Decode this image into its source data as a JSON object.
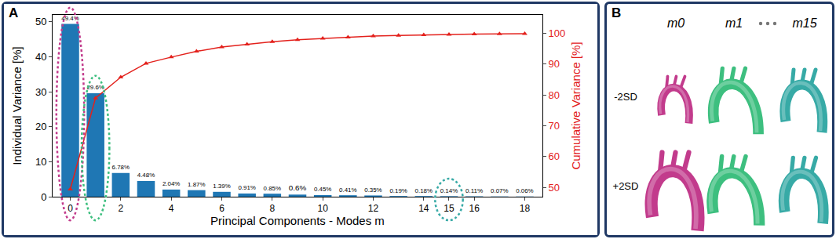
{
  "panel_a": {
    "label": "A"
  },
  "chart_data": {
    "type": "bar",
    "x": [
      0,
      1,
      2,
      3,
      4,
      5,
      6,
      7,
      8,
      9,
      10,
      11,
      12,
      13,
      14,
      15,
      16,
      17,
      18
    ],
    "xlabel": "Principal Components - Modes m",
    "ylabel": "Individual Variance [%]",
    "y2label": "Cumulative Variance [%]",
    "xlim": [
      -0.7,
      18.7
    ],
    "xticks": [
      0,
      2,
      4,
      6,
      8,
      10,
      12,
      14,
      15,
      16,
      18
    ],
    "ylim": [
      0,
      52
    ],
    "yticks": [
      0,
      10,
      20,
      30,
      40,
      50
    ],
    "y2lim": [
      47,
      106
    ],
    "y2ticks": [
      50,
      60,
      70,
      80,
      90,
      100
    ],
    "data_labels": true,
    "series": [
      {
        "type": "bar",
        "color": "#1f77b4",
        "values": [
          49.4,
          29.6,
          6.78,
          4.48,
          2.04,
          1.87,
          1.39,
          0.91,
          0.85,
          0.6,
          0.45,
          0.41,
          0.35,
          0.19,
          0.18,
          0.14,
          0.11,
          0.07,
          0.06
        ],
        "value_labels": [
          "49.4%",
          "29.6%",
          "6.78%",
          "4.48%",
          "2.04%",
          "1.87%",
          "1.39%",
          "0.91%",
          "0.85%",
          "0.6%",
          "0.45%",
          "0.41%",
          "0.35%",
          "0.19%",
          "0.18%",
          "0.14%",
          "0.11%",
          "0.07%",
          "0.06%"
        ]
      },
      {
        "type": "line",
        "axis": "y2",
        "color": "#e3211c",
        "marker": "triangle",
        "values": [
          49.4,
          79.0,
          85.78,
          90.26,
          92.3,
          94.17,
          95.56,
          96.47,
          97.32,
          97.92,
          98.37,
          98.78,
          99.13,
          99.32,
          99.5,
          99.64,
          99.75,
          99.82,
          99.88
        ]
      }
    ]
  },
  "panel_b": {
    "label": "B",
    "columns": [
      {
        "label": "m0",
        "mode": 0,
        "color": "#c23b8c"
      },
      {
        "label": "m1",
        "mode": 1,
        "color": "#3dbf7f"
      },
      {
        "label": "m15",
        "mode": 15,
        "color": "#37aaa6"
      }
    ],
    "rows": [
      "-2SD",
      "+2SD"
    ]
  }
}
